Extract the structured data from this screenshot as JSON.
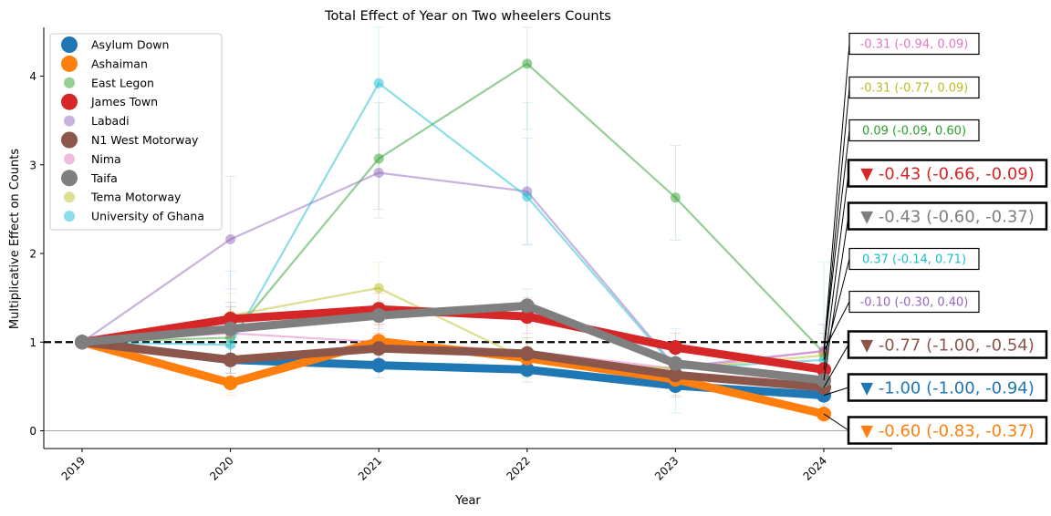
{
  "chart_data": {
    "type": "line",
    "title": "Total Effect of Year on Two wheelers Counts",
    "xlabel": "Year",
    "ylabel": "Multiplicative Effect on Counts",
    "x": [
      "2019",
      "2020",
      "2021",
      "2022",
      "2023",
      "2024"
    ],
    "ylim": [
      -0.2,
      4.55
    ],
    "yticks": [
      0,
      1,
      2,
      3,
      4
    ],
    "reference_line": 1,
    "legend_position": "top-left",
    "series": [
      {
        "name": "Asylum Down",
        "color": "#1f77b4",
        "bold": true,
        "values": [
          1.0,
          0.8,
          0.74,
          0.69,
          0.51,
          0.4
        ],
        "upper": [
          1.0,
          0.95,
          0.9,
          0.85,
          0.65,
          0.55
        ],
        "lower": [
          1.0,
          0.65,
          0.6,
          0.55,
          0.38,
          0.28
        ],
        "label": "▼ -1.00 (-1.00, -0.94)"
      },
      {
        "name": "Ashaiman",
        "color": "#ff7f0e",
        "bold": true,
        "values": [
          1.0,
          0.54,
          1.01,
          0.82,
          0.58,
          0.19
        ],
        "upper": [
          1.0,
          0.7,
          1.2,
          1.0,
          0.75,
          0.3
        ],
        "lower": [
          1.0,
          0.4,
          0.85,
          0.65,
          0.4,
          0.1
        ],
        "label": "▼ -0.60 (-0.83, -0.37)"
      },
      {
        "name": "East Legon",
        "color": "#2ca02c",
        "bold": false,
        "values": [
          1.0,
          1.05,
          3.07,
          4.14,
          2.63,
          0.88
        ],
        "upper": [
          1.0,
          1.4,
          3.7,
          4.55,
          3.22,
          1.1
        ],
        "lower": [
          1.0,
          0.8,
          2.5,
          3.4,
          2.15,
          0.7
        ],
        "label": "0.09 (-0.09, 0.60)"
      },
      {
        "name": "James Town",
        "color": "#d62728",
        "bold": true,
        "values": [
          1.0,
          1.26,
          1.37,
          1.29,
          0.94,
          0.69
        ],
        "upper": [
          1.0,
          1.45,
          1.55,
          1.5,
          1.1,
          0.85
        ],
        "lower": [
          1.0,
          1.05,
          1.2,
          1.1,
          0.8,
          0.55
        ],
        "label": "▼ -0.43 (-0.66, -0.09)"
      },
      {
        "name": "Labadi",
        "color": "#9467bd",
        "bold": false,
        "values": [
          1.0,
          2.16,
          2.91,
          2.7,
          0.72,
          0.9
        ],
        "upper": [
          1.0,
          2.87,
          3.4,
          3.3,
          1.0,
          1.2
        ],
        "lower": [
          1.0,
          1.6,
          2.4,
          2.1,
          0.5,
          0.7
        ],
        "label": "-0.10 (-0.30, 0.40)"
      },
      {
        "name": "N1 West Motorway",
        "color": "#8c564b",
        "bold": true,
        "values": [
          1.0,
          0.8,
          0.93,
          0.87,
          0.63,
          0.49
        ],
        "upper": [
          1.0,
          0.95,
          1.1,
          1.05,
          0.8,
          0.65
        ],
        "lower": [
          1.0,
          0.65,
          0.8,
          0.7,
          0.5,
          0.38
        ],
        "label": "▼ -0.77 (-1.00, -0.54)"
      },
      {
        "name": "Nima",
        "color": "#e377c2",
        "bold": false,
        "values": [
          1.0,
          1.1,
          1.0,
          0.9,
          0.7,
          0.9
        ],
        "upper": [
          1.0,
          1.4,
          1.3,
          1.2,
          0.95,
          1.2
        ],
        "lower": [
          1.0,
          0.8,
          0.75,
          0.65,
          0.5,
          0.65
        ],
        "label": "-0.31 (-0.94, 0.09)"
      },
      {
        "name": "Taifa",
        "color": "#7f7f7f",
        "bold": true,
        "values": [
          1.0,
          1.15,
          1.3,
          1.41,
          0.76,
          0.57
        ],
        "upper": [
          1.0,
          1.3,
          1.45,
          1.6,
          0.9,
          0.7
        ],
        "lower": [
          1.0,
          1.0,
          1.15,
          1.25,
          0.62,
          0.45
        ],
        "label": "▼ -0.43 (-0.60, -0.37)"
      },
      {
        "name": "Tema Motorway",
        "color": "#bcbd22",
        "bold": false,
        "values": [
          1.0,
          1.3,
          1.61,
          0.8,
          0.7,
          0.85
        ],
        "upper": [
          1.0,
          1.55,
          1.9,
          1.05,
          0.9,
          1.05
        ],
        "lower": [
          1.0,
          1.05,
          1.35,
          0.6,
          0.5,
          0.65
        ],
        "label": "-0.31 (-0.77, 0.09)"
      },
      {
        "name": "University of Ghana",
        "color": "#17becf",
        "bold": false,
        "values": [
          1.0,
          0.97,
          3.92,
          2.64,
          0.7,
          0.8
        ],
        "upper": [
          1.0,
          1.8,
          4.55,
          3.7,
          1.15,
          1.9
        ],
        "lower": [
          1.0,
          0.55,
          3.3,
          2.1,
          0.2,
          0.5
        ],
        "label": "0.37 (-0.14, 0.71)"
      }
    ],
    "annotation_order": [
      "Nima",
      "Tema Motorway",
      "East Legon",
      "James Town",
      "Taifa",
      "University of Ghana",
      "Labadi",
      "N1 West Motorway",
      "Asylum Down",
      "Ashaiman"
    ]
  }
}
